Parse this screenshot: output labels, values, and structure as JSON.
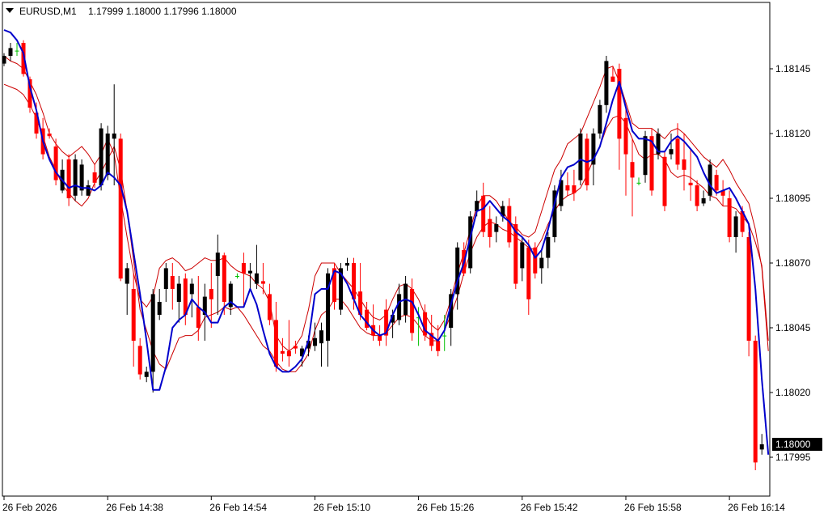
{
  "window": {
    "title": "EURUSD,M1",
    "quote": "1.17999 1.18000 1.17996 1.18000",
    "menu_icon": "triangle-down-icon"
  },
  "chart_data": {
    "type": "candlestick",
    "symbol": "EURUSD",
    "timeframe": "M1",
    "ylim": [
      1.17985,
      1.1817
    ],
    "y_ticks": [
      "1.18145",
      "1.18120",
      "1.18095",
      "1.18070",
      "1.18045",
      "1.18020",
      "1.17995"
    ],
    "y_tick_values": [
      1.18145,
      1.1812,
      1.18095,
      1.1807,
      1.18045,
      1.1802,
      1.17995
    ],
    "current_price": "1.18000",
    "current_price_value": 1.18,
    "x_labels": [
      "26 Feb 2026",
      "26 Feb 14:38",
      "26 Feb 14:54",
      "26 Feb 15:10",
      "26 Feb 15:26",
      "26 Feb 15:42",
      "26 Feb 15:58",
      "26 Feb 16:14"
    ],
    "x_label_bar_index": [
      0,
      16,
      32,
      48,
      64,
      80,
      96,
      112
    ],
    "colors": {
      "bull": "#000000",
      "bear": "#ff0000",
      "doji": "#00c000",
      "ma": "#0000cc",
      "band": "#cc0000",
      "price_tag_bg": "#000000",
      "price_tag_text": "#ffffff"
    },
    "candles": [
      [
        1.18147,
        1.18151,
        1.18146,
        1.1815
      ],
      [
        1.1815,
        1.18155,
        1.18148,
        1.18153
      ],
      [
        1.18152,
        1.18155,
        1.1815,
        1.18152
      ],
      [
        1.18155,
        1.18156,
        1.18142,
        1.18143
      ],
      [
        1.18141,
        1.18142,
        1.18128,
        1.1813
      ],
      [
        1.18128,
        1.18132,
        1.18118,
        1.1812
      ],
      [
        1.18122,
        1.18126,
        1.1811,
        1.18112
      ],
      [
        1.1812,
        1.18122,
        1.18118,
        1.18119
      ],
      [
        1.18115,
        1.18118,
        1.181,
        1.18102
      ],
      [
        1.18098,
        1.1811,
        1.18097,
        1.18106
      ],
      [
        1.1811,
        1.18112,
        1.18092,
        1.18095
      ],
      [
        1.18096,
        1.18112,
        1.18094,
        1.1811
      ],
      [
        1.18098,
        1.1811,
        1.18096,
        1.18108
      ],
      [
        1.18096,
        1.18102,
        1.18096,
        1.181
      ],
      [
        1.18105,
        1.18108,
        1.18099,
        1.18101
      ],
      [
        1.181,
        1.18124,
        1.18098,
        1.18122
      ],
      [
        1.18104,
        1.18123,
        1.18102,
        1.1812
      ],
      [
        1.18118,
        1.18139,
        1.181,
        1.1812
      ],
      [
        1.18118,
        1.1812,
        1.18063,
        1.18064
      ],
      [
        1.18062,
        1.1807,
        1.1805,
        1.18068
      ],
      [
        1.1806,
        1.18066,
        1.1803,
        1.1804
      ],
      [
        1.18038,
        1.18041,
        1.18025,
        1.18027
      ],
      [
        1.18026,
        1.1803,
        1.18024,
        1.18028
      ],
      [
        1.18028,
        1.1806,
        1.1802,
        1.18058
      ],
      [
        1.1805,
        1.1806,
        1.18048,
        1.18055
      ],
      [
        1.1806,
        1.1807,
        1.18055,
        1.18068
      ],
      [
        1.18065,
        1.1807,
        1.18052,
        1.1806
      ],
      [
        1.18055,
        1.18065,
        1.18047,
        1.18062
      ],
      [
        1.18064,
        1.18066,
        1.18046,
        1.1805
      ],
      [
        1.18058,
        1.18064,
        1.18049,
        1.18062
      ],
      [
        1.18053,
        1.18065,
        1.1804,
        1.18045
      ],
      [
        1.1805,
        1.18062,
        1.1804,
        1.18057
      ],
      [
        1.1806,
        1.1807,
        1.18045,
        1.18056
      ],
      [
        1.18065,
        1.18081,
        1.1805,
        1.18074
      ],
      [
        1.18073,
        1.18074,
        1.1805,
        1.18055
      ],
      [
        1.18053,
        1.18063,
        1.1805,
        1.18062
      ],
      [
        1.18065,
        1.18066,
        1.18064,
        1.18065
      ],
      [
        1.1807,
        1.18074,
        1.18053,
        1.18066
      ],
      [
        1.18066,
        1.1807,
        1.1806,
        1.18067
      ],
      [
        1.18062,
        1.18077,
        1.1806,
        1.18066
      ],
      [
        1.18063,
        1.1807,
        1.18058,
        1.18062
      ],
      [
        1.18058,
        1.18062,
        1.18046,
        1.18048
      ],
      [
        1.18048,
        1.18055,
        1.18028,
        1.1803
      ],
      [
        1.18036,
        1.18041,
        1.18032,
        1.18035
      ],
      [
        1.18036,
        1.18048,
        1.1803,
        1.18034
      ],
      [
        1.18038,
        1.1804,
        1.18035,
        1.18037
      ],
      [
        1.18034,
        1.18038,
        1.1803,
        1.18037
      ],
      [
        1.18037,
        1.18042,
        1.18034,
        1.1804
      ],
      [
        1.18038,
        1.18047,
        1.18036,
        1.18041
      ],
      [
        1.18039,
        1.18047,
        1.1803,
        1.18044
      ],
      [
        1.1804,
        1.18068,
        1.1803,
        1.18066
      ],
      [
        1.18068,
        1.1807,
        1.18052,
        1.18055
      ],
      [
        1.18052,
        1.1807,
        1.1805,
        1.18068
      ],
      [
        1.18069,
        1.18072,
        1.18067,
        1.1807
      ],
      [
        1.1807,
        1.18072,
        1.18052,
        1.18056
      ],
      [
        1.18059,
        1.1807,
        1.18048,
        1.1805
      ],
      [
        1.18052,
        1.18055,
        1.18044,
        1.18045
      ],
      [
        1.18046,
        1.18054,
        1.1804,
        1.18042
      ],
      [
        1.18042,
        1.18046,
        1.18038,
        1.1804
      ],
      [
        1.18052,
        1.18056,
        1.18038,
        1.18042
      ],
      [
        1.18047,
        1.18052,
        1.18041,
        1.1805
      ],
      [
        1.18048,
        1.18062,
        1.18046,
        1.18058
      ],
      [
        1.1805,
        1.18065,
        1.18047,
        1.18062
      ],
      [
        1.1806,
        1.18064,
        1.1804,
        1.18043
      ],
      [
        1.18049,
        1.18053,
        1.18038,
        1.18049
      ],
      [
        1.18051,
        1.18054,
        1.1804,
        1.18042
      ],
      [
        1.18043,
        1.1805,
        1.18036,
        1.18038
      ],
      [
        1.1804,
        1.18046,
        1.18034,
        1.18036
      ],
      [
        1.18042,
        1.1805,
        1.18036,
        1.18042
      ],
      [
        1.18045,
        1.1806,
        1.18038,
        1.18058
      ],
      [
        1.18058,
        1.18078,
        1.18052,
        1.18076
      ],
      [
        1.18075,
        1.18078,
        1.18065,
        1.18066
      ],
      [
        1.18068,
        1.1809,
        1.18066,
        1.18088
      ],
      [
        1.1809,
        1.18098,
        1.18088,
        1.18094
      ],
      [
        1.18096,
        1.18101,
        1.1808,
        1.18082
      ],
      [
        1.18087,
        1.18092,
        1.18076,
        1.1808
      ],
      [
        1.18082,
        1.18088,
        1.18078,
        1.18085
      ],
      [
        1.18088,
        1.18094,
        1.18086,
        1.18092
      ],
      [
        1.18092,
        1.18095,
        1.18076,
        1.18078
      ],
      [
        1.18085,
        1.18088,
        1.1806,
        1.18062
      ],
      [
        1.18068,
        1.1808,
        1.18063,
        1.18078
      ],
      [
        1.18076,
        1.18079,
        1.1805,
        1.18056
      ],
      [
        1.18076,
        1.18078,
        1.18064,
        1.18066
      ],
      [
        1.18068,
        1.18075,
        1.18062,
        1.18072
      ],
      [
        1.18072,
        1.18082,
        1.18068,
        1.1808
      ],
      [
        1.1808,
        1.181,
        1.18078,
        1.18098
      ],
      [
        1.18092,
        1.18106,
        1.1809,
        1.18102
      ],
      [
        1.181,
        1.18105,
        1.18096,
        1.18098
      ],
      [
        1.181,
        1.18106,
        1.18094,
        1.18097
      ],
      [
        1.18102,
        1.18122,
        1.181,
        1.1812
      ],
      [
        1.18118,
        1.1812,
        1.18098,
        1.181
      ],
      [
        1.18108,
        1.18122,
        1.181,
        1.1812
      ],
      [
        1.1812,
        1.18133,
        1.18118,
        1.18131
      ],
      [
        1.18131,
        1.1815,
        1.18128,
        1.18148
      ],
      [
        1.18142,
        1.18146,
        1.1814,
        1.1814
      ],
      [
        1.18145,
        1.18147,
        1.18106,
        1.18118
      ],
      [
        1.18126,
        1.1813,
        1.18096,
        1.18112
      ],
      [
        1.18109,
        1.18118,
        1.18088,
        1.18103
      ],
      [
        1.18101,
        1.18103,
        1.181,
        1.18101
      ],
      [
        1.18104,
        1.18121,
        1.18101,
        1.18119
      ],
      [
        1.18119,
        1.18122,
        1.18096,
        1.18098
      ],
      [
        1.18112,
        1.18122,
        1.1811,
        1.1812
      ],
      [
        1.18111,
        1.18113,
        1.1809,
        1.18092
      ],
      [
        1.18112,
        1.1812,
        1.1811,
        1.18114
      ],
      [
        1.18118,
        1.18124,
        1.18106,
        1.18108
      ],
      [
        1.1811,
        1.1812,
        1.18098,
        1.18106
      ],
      [
        1.18101,
        1.18114,
        1.18094,
        1.181
      ],
      [
        1.181,
        1.18102,
        1.1809,
        1.18092
      ],
      [
        1.18093,
        1.18098,
        1.18092,
        1.18095
      ],
      [
        1.18096,
        1.1811,
        1.18094,
        1.18108
      ],
      [
        1.18104,
        1.18106,
        1.18096,
        1.18098
      ],
      [
        1.18098,
        1.18102,
        1.18092,
        1.18096
      ],
      [
        1.18095,
        1.18098,
        1.18078,
        1.1808
      ],
      [
        1.1808,
        1.1809,
        1.18074,
        1.18088
      ],
      [
        1.1809,
        1.18092,
        1.1808,
        1.18082
      ],
      [
        1.1808,
        1.18082,
        1.18034,
        1.1804
      ],
      [
        1.1804,
        1.18042,
        1.1799,
        1.17993
      ],
      [
        1.17998,
        1.18004,
        1.17996,
        1.18
      ]
    ],
    "ma_line": [
      1.1816,
      1.18159,
      1.18156,
      1.18151,
      1.18138,
      1.18129,
      1.18117,
      1.1811,
      1.18105,
      1.18102,
      1.18099,
      1.181,
      1.18099,
      1.18099,
      1.18098,
      1.181,
      1.18105,
      1.18103,
      1.181,
      1.1809,
      1.18074,
      1.18058,
      1.1804,
      1.18021,
      1.18021,
      1.1803,
      1.18045,
      1.18048,
      1.1805,
      1.18056,
      1.18053,
      1.18051,
      1.18047,
      1.18047,
      1.18053,
      1.18055,
      1.18053,
      1.18053,
      1.1806,
      1.18054,
      1.18044,
      1.18035,
      1.1803,
      1.18028,
      1.18028,
      1.1803,
      1.18033,
      1.1804,
      1.18058,
      1.1806,
      1.1806,
      1.18067,
      1.18066,
      1.18062,
      1.18056,
      1.1805,
      1.18047,
      1.18044,
      1.18042,
      1.18043,
      1.1805,
      1.18055,
      1.18056,
      1.18055,
      1.1805,
      1.18044,
      1.18042,
      1.1804,
      1.18044,
      1.18054,
      1.18063,
      1.1807,
      1.1808,
      1.1809,
      1.18091,
      1.18094,
      1.18091,
      1.18088,
      1.18086,
      1.18082,
      1.1808,
      1.18077,
      1.18072,
      1.18075,
      1.18083,
      1.18093,
      1.18103,
      1.18107,
      1.18108,
      1.1811,
      1.18109,
      1.1811,
      1.18115,
      1.18124,
      1.18133,
      1.1814,
      1.1813,
      1.18121,
      1.18118,
      1.18118,
      1.18117,
      1.18113,
      1.18113,
      1.18117,
      1.18119,
      1.18117,
      1.18114,
      1.18111,
      1.18105,
      1.181,
      1.18097,
      1.18098,
      1.18099,
      1.18095,
      1.1809,
      1.18085,
      1.1806,
      1.18025,
      1.17996
    ],
    "upper_band": [
      1.1815,
      1.18148,
      1.18147,
      1.18145,
      1.1814,
      1.18135,
      1.18128,
      1.1812,
      1.18116,
      1.18113,
      1.18111,
      1.18113,
      1.18115,
      1.18112,
      1.18108,
      1.18112,
      1.18118,
      1.18112,
      1.18095,
      1.1808,
      1.18066,
      1.18056,
      1.18053,
      1.18057,
      1.18068,
      1.18071,
      1.18072,
      1.1807,
      1.18067,
      1.18068,
      1.1807,
      1.18072,
      1.18071,
      1.18071,
      1.18072,
      1.18069,
      1.18067,
      1.18066,
      1.18065,
      1.18062,
      1.1806,
      1.18055,
      1.18042,
      1.18038,
      1.18036,
      1.18038,
      1.18042,
      1.18052,
      1.18065,
      1.1807,
      1.1807,
      1.1807,
      1.18066,
      1.18063,
      1.1806,
      1.18056,
      1.18052,
      1.18049,
      1.18048,
      1.1805,
      1.18056,
      1.18061,
      1.18062,
      1.1806,
      1.18056,
      1.1805,
      1.18046,
      1.18044,
      1.18048,
      1.18056,
      1.18066,
      1.18074,
      1.18083,
      1.18092,
      1.18096,
      1.18096,
      1.18094,
      1.1809,
      1.18086,
      1.18084,
      1.18081,
      1.1808,
      1.18082,
      1.1809,
      1.18098,
      1.18106,
      1.1811,
      1.18116,
      1.18118,
      1.1812,
      1.18126,
      1.18132,
      1.18138,
      1.18145,
      1.18146,
      1.1814,
      1.18132,
      1.18124,
      1.18122,
      1.18122,
      1.18122,
      1.1812,
      1.18118,
      1.18121,
      1.18122,
      1.1812,
      1.18117,
      1.18114,
      1.18111,
      1.18109,
      1.18107,
      1.1811,
      1.18106,
      1.18101,
      1.18097,
      1.18093,
      1.18083,
      1.18068,
      1.18036
    ],
    "lower_band": [
      1.18139,
      1.18138,
      1.18137,
      1.18135,
      1.18131,
      1.18126,
      1.18119,
      1.18111,
      1.18106,
      1.181,
      1.18097,
      1.18094,
      1.18092,
      1.18095,
      1.18101,
      1.18105,
      1.1811,
      1.18115,
      1.18106,
      1.1809,
      1.18071,
      1.18052,
      1.18044,
      1.18036,
      1.18031,
      1.18029,
      1.18035,
      1.18041,
      1.18042,
      1.18042,
      1.18044,
      1.18049,
      1.1805,
      1.18051,
      1.18053,
      1.18052,
      1.18053,
      1.1805,
      1.18046,
      1.18042,
      1.18038,
      1.18036,
      1.18032,
      1.18029,
      1.18028,
      1.18028,
      1.18031,
      1.18035,
      1.18044,
      1.1805,
      1.18052,
      1.18056,
      1.18056,
      1.18053,
      1.18049,
      1.18045,
      1.18043,
      1.18042,
      1.18042,
      1.18043,
      1.18046,
      1.18049,
      1.1805,
      1.18049,
      1.18046,
      1.18042,
      1.1804,
      1.1804,
      1.18044,
      1.1805,
      1.18057,
      1.18066,
      1.18074,
      1.1808,
      1.18084,
      1.18086,
      1.18085,
      1.18083,
      1.18082,
      1.1808,
      1.18078,
      1.18076,
      1.18075,
      1.18079,
      1.18085,
      1.1809,
      1.18094,
      1.18096,
      1.18097,
      1.18099,
      1.18104,
      1.1811,
      1.18115,
      1.18122,
      1.18126,
      1.18127,
      1.18124,
      1.18118,
      1.18112,
      1.1811,
      1.18112,
      1.18112,
      1.1811,
      1.18105,
      1.18103,
      1.18104,
      1.18103,
      1.18101,
      1.18099,
      1.18096,
      1.18095,
      1.18092,
      1.18092,
      1.18091,
      1.18088,
      1.18085,
      1.18078,
      1.18069,
      1.1804
    ]
  }
}
